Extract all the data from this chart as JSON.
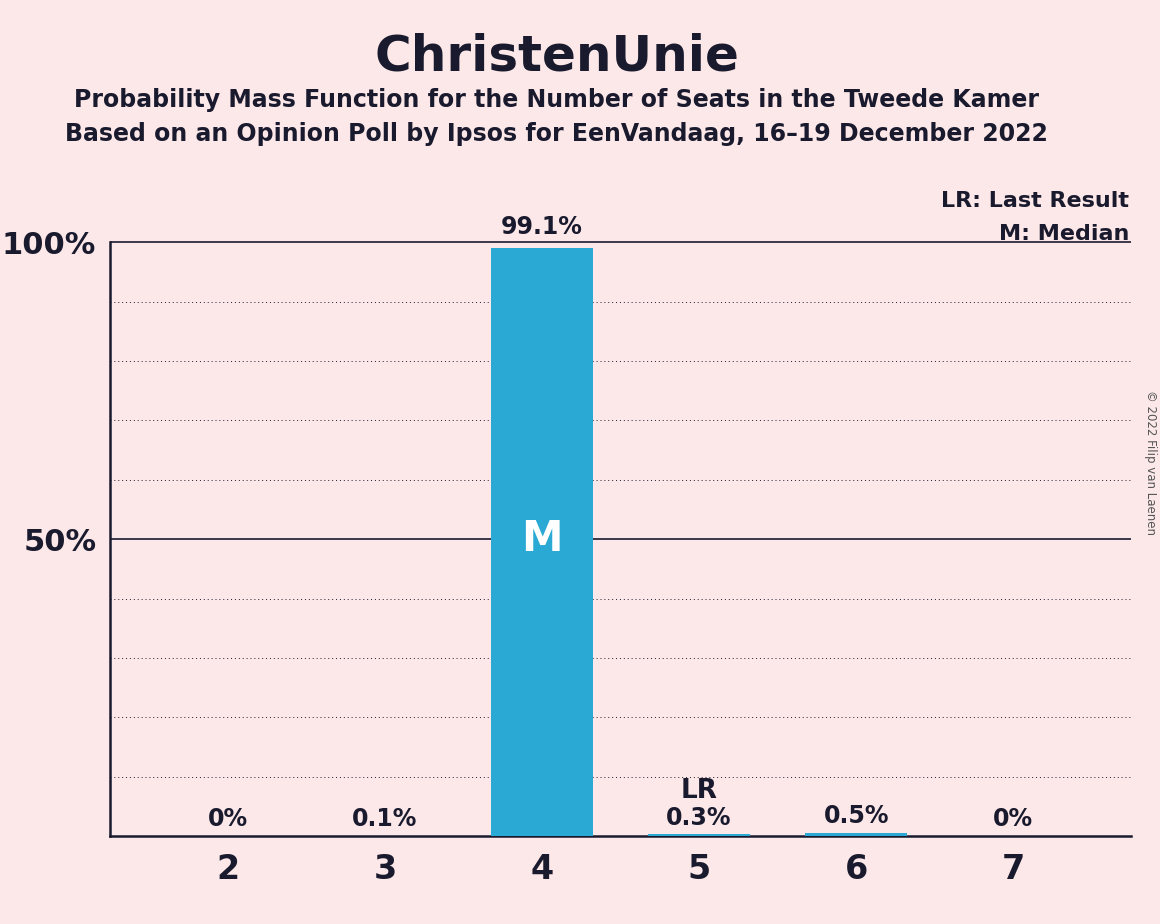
{
  "title": "ChristenUnie",
  "subtitle1": "Probability Mass Function for the Number of Seats in the Tweede Kamer",
  "subtitle2": "Based on an Opinion Poll by Ipsos for EenVandaag, 16–19 December 2022",
  "copyright": "© 2022 Filip van Laenen",
  "categories": [
    2,
    3,
    4,
    5,
    6,
    7
  ],
  "values": [
    0.0,
    0.001,
    0.991,
    0.003,
    0.005,
    0.0
  ],
  "labels": [
    "0%",
    "0.1%",
    "99.1%",
    "0.3%",
    "0.5%",
    "0%"
  ],
  "bar_color": "#29a9d4",
  "background_color": "#fce8e8",
  "text_color": "#1a1a2e",
  "median_seat": 4,
  "lr_seat": 5,
  "legend_lr": "LR: Last Result",
  "legend_m": "M: Median",
  "yticks": [
    0.0,
    0.1,
    0.2,
    0.3,
    0.4,
    0.5,
    0.6,
    0.7,
    0.8,
    0.9,
    1.0
  ],
  "ylim": [
    0,
    1.12
  ],
  "bar_width": 0.65
}
